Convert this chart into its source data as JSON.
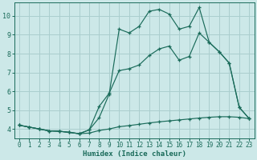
{
  "xlabel": "Humidex (Indice chaleur)",
  "background_color": "#cce8e8",
  "grid_color": "#aacece",
  "line_color": "#1a6b5a",
  "xlim": [
    -0.5,
    23.5
  ],
  "ylim": [
    3.5,
    10.7
  ],
  "xticks": [
    0,
    1,
    2,
    3,
    4,
    5,
    6,
    7,
    8,
    9,
    10,
    11,
    12,
    13,
    14,
    15,
    16,
    17,
    18,
    19,
    20,
    21,
    22,
    23
  ],
  "yticks": [
    4,
    5,
    6,
    7,
    8,
    9,
    10
  ],
  "s1_x": [
    0,
    1,
    2,
    3,
    4,
    5,
    6,
    7,
    8,
    9,
    10,
    11,
    12,
    13,
    14,
    15,
    16,
    17,
    18,
    19,
    20,
    21,
    22,
    23
  ],
  "s1_y": [
    4.2,
    4.1,
    4.0,
    3.9,
    3.88,
    3.82,
    3.75,
    3.78,
    3.92,
    4.0,
    4.12,
    4.18,
    4.25,
    4.32,
    4.38,
    4.43,
    4.48,
    4.53,
    4.58,
    4.62,
    4.65,
    4.65,
    4.62,
    4.55
  ],
  "s2_x": [
    0,
    1,
    2,
    3,
    4,
    5,
    6,
    7,
    8,
    9,
    10,
    11,
    12,
    13,
    14,
    15,
    16,
    17,
    18,
    19,
    20,
    21,
    22,
    23
  ],
  "s2_y": [
    4.2,
    4.1,
    4.0,
    3.9,
    3.88,
    3.82,
    3.75,
    3.95,
    5.2,
    5.9,
    7.1,
    7.2,
    7.4,
    7.9,
    8.25,
    8.4,
    7.65,
    7.85,
    9.1,
    8.6,
    8.1,
    7.5,
    5.15,
    4.55
  ],
  "s3_x": [
    0,
    1,
    2,
    3,
    4,
    5,
    6,
    7,
    8,
    9,
    10,
    11,
    12,
    13,
    14,
    15,
    16,
    17,
    18,
    19,
    20,
    21,
    22,
    23
  ],
  "s3_y": [
    4.2,
    4.1,
    4.0,
    3.9,
    3.88,
    3.82,
    3.75,
    3.95,
    4.6,
    5.85,
    9.3,
    9.1,
    9.45,
    10.25,
    10.35,
    10.1,
    9.3,
    9.45,
    10.45,
    8.6,
    8.1,
    7.5,
    5.15,
    4.55
  ]
}
